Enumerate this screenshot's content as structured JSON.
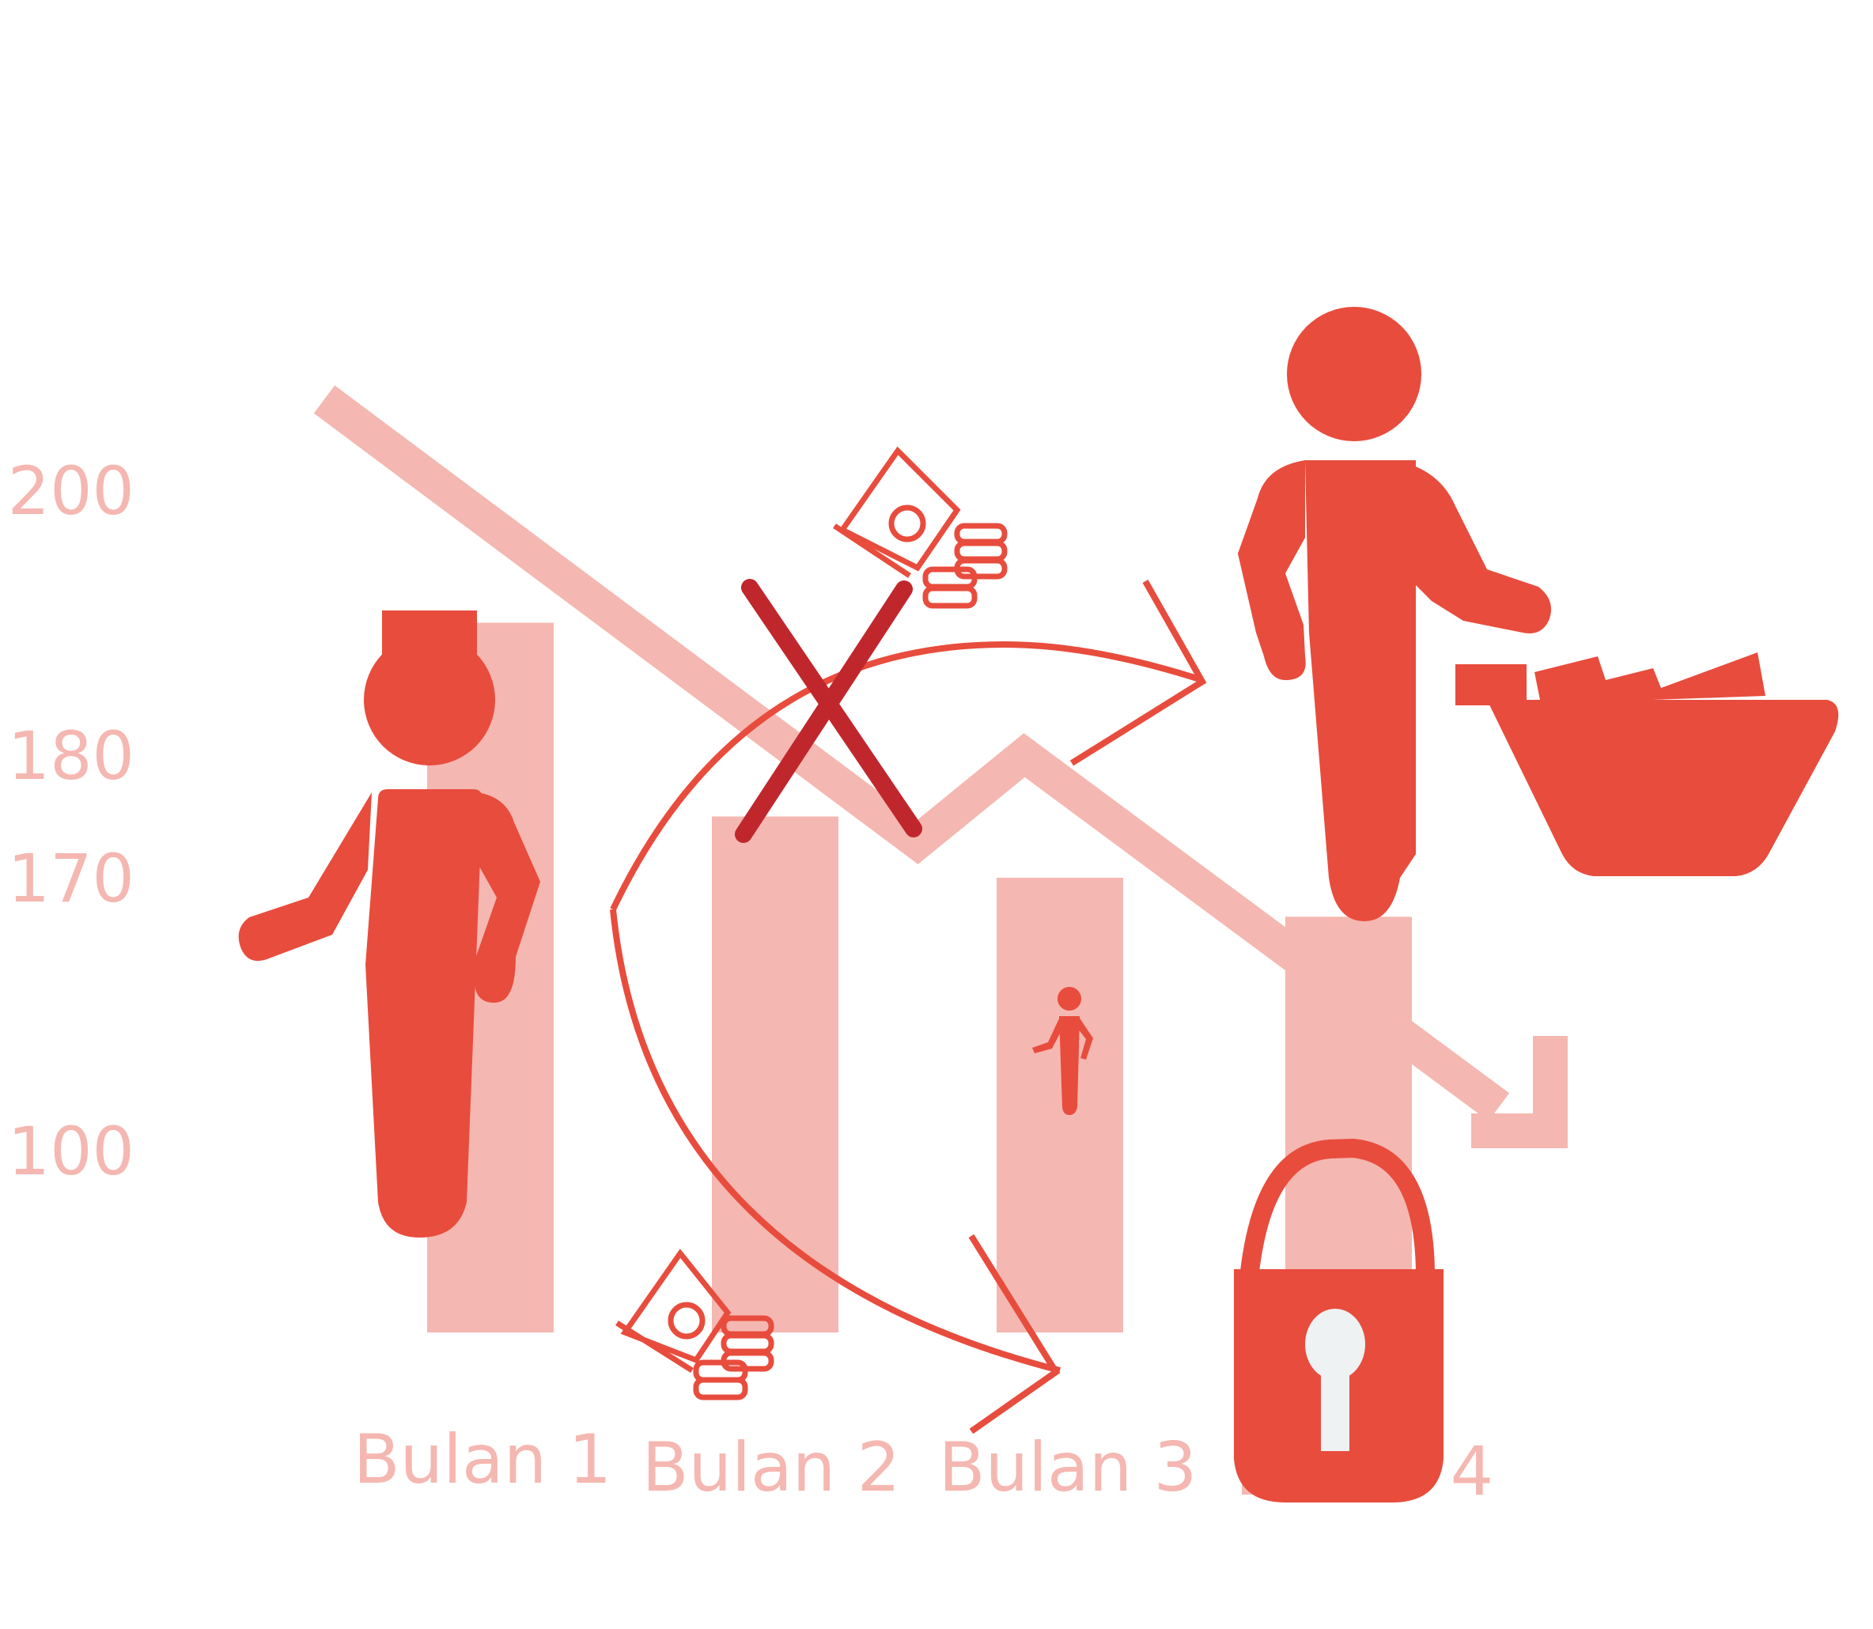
{
  "chart_data": {
    "type": "bar",
    "categories": [
      "Bulan 1",
      "Bulan 2",
      "Bulan 3",
      "Bulan 4"
    ],
    "values": [
      190,
      175,
      170,
      160
    ],
    "y_tick_labels": [
      "200",
      "180",
      "170",
      "100"
    ],
    "trend": "down",
    "grid": false,
    "legend": "none"
  },
  "colors": {
    "icon": "#e84c3d",
    "bar": "#f5b7b1",
    "label": "#f5b7b1",
    "cross": "#c0272d",
    "keyhole": "#eef2f3"
  },
  "icons": [
    "person-icon",
    "money-icon",
    "person-with-basket-icon",
    "small-person-icon",
    "padlock-icon",
    "cross-icon",
    "cycle-arrow-icon",
    "down-trend-arrow-icon"
  ]
}
